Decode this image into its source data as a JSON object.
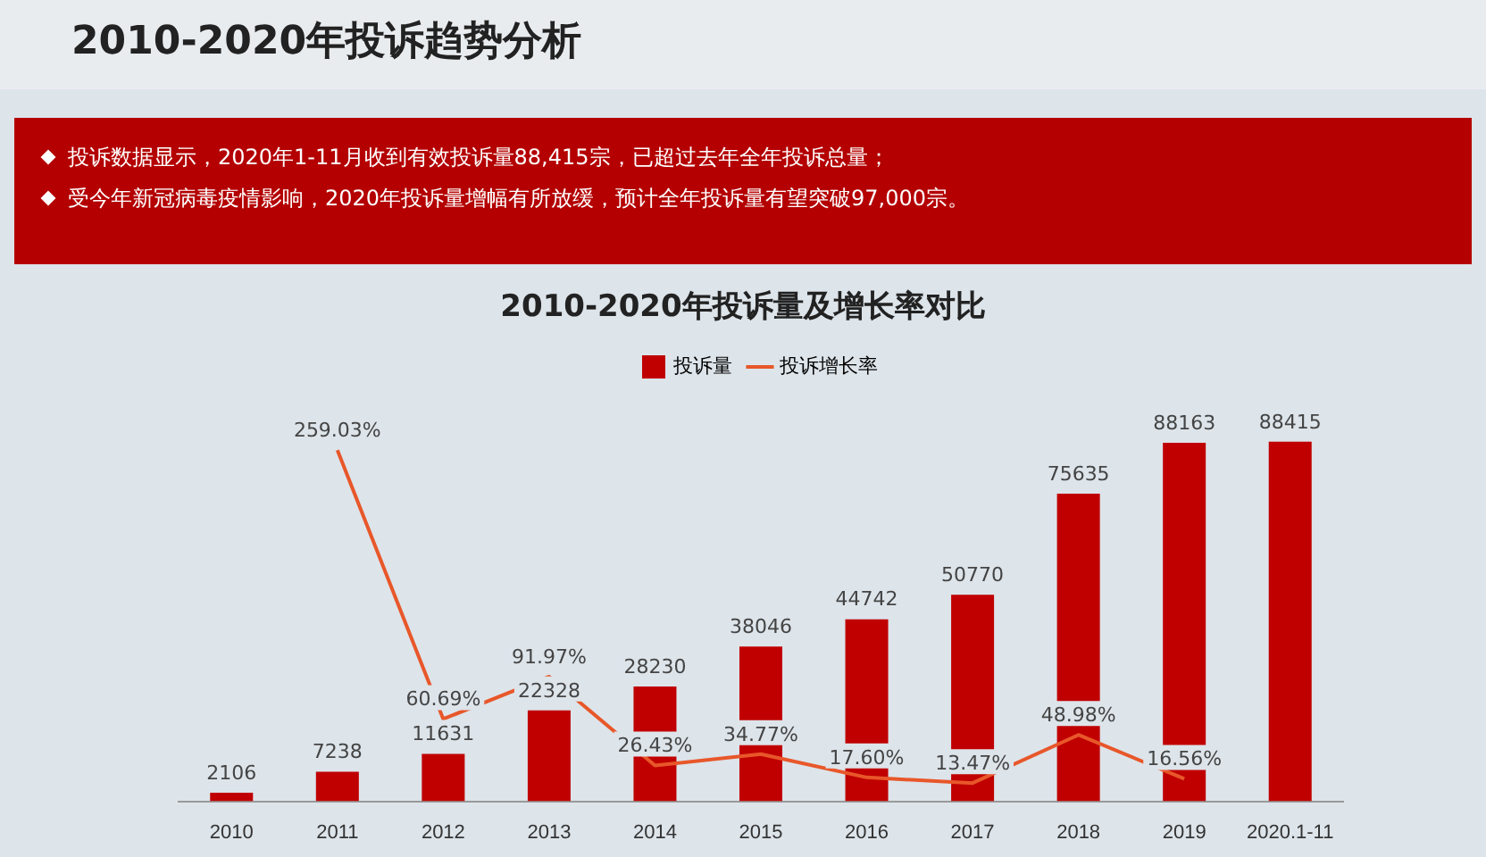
{
  "chart_data": {
    "type": "bar",
    "title": "2010-2020年投诉趋势分析",
    "subtitle": "2010-2020年投诉量及增长率对比",
    "annotations": [
      "投诉数据显示，2020年1-11月收到有效投诉量88,415宗，已超过去年全年投诉总量；",
      "受今年新冠病毒疫情影响，2020年投诉量增幅有所放缓，预计全年投诉量有望突破97,000宗。"
    ],
    "categories": [
      "2010",
      "2011",
      "2012",
      "2013",
      "2014",
      "2015",
      "2016",
      "2017",
      "2018",
      "2019",
      "2020.1-11"
    ],
    "series": [
      {
        "name": "投诉量",
        "color": "#c00000",
        "values": [
          2106,
          7238,
          11631,
          22328,
          28230,
          38046,
          44742,
          50770,
          75635,
          88163,
          88415
        ]
      },
      {
        "name": "投诉增长率",
        "type": "line",
        "axis": "y2",
        "color": "#e8572a",
        "values": [
          null,
          259.03,
          60.69,
          91.97,
          26.43,
          34.77,
          17.6,
          13.47,
          48.98,
          16.56,
          null
        ],
        "value_labels": [
          null,
          "259.03%",
          "60.69%",
          "91.97%",
          "26.43%",
          "34.77%",
          "17.60%",
          "13.47%",
          "48.98%",
          "16.56%",
          null
        ]
      }
    ],
    "data_labels": true,
    "legend": "top",
    "grid": false,
    "tick_labels": "x",
    "marker": "none"
  }
}
